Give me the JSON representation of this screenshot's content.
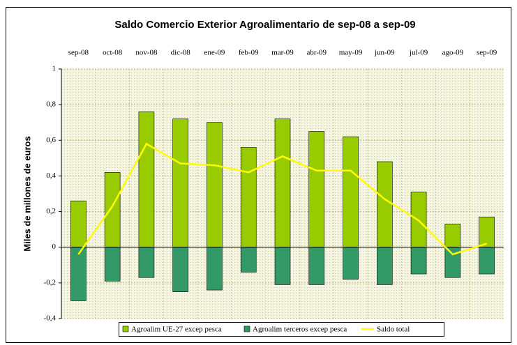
{
  "chart_data": {
    "type": "bar",
    "title": "Saldo Comercio Exterior Agroalimentario de sep-08 a sep-09",
    "ylabel": "Miles de millones de euros",
    "categories": [
      "sep-08",
      "oct-08",
      "nov-08",
      "dic-08",
      "ene-09",
      "feb-09",
      "mar-09",
      "abr-09",
      "may-09",
      "jun-09",
      "jul-09",
      "ago-09",
      "sep-09"
    ],
    "series": [
      {
        "name": "Agroalim UE-27 excep pesca",
        "type": "bar",
        "color": "#99cc00",
        "values": [
          0.26,
          0.42,
          0.76,
          0.72,
          0.7,
          0.56,
          0.72,
          0.65,
          0.62,
          0.48,
          0.31,
          0.13,
          0.17
        ]
      },
      {
        "name": "Agroalim terceros excep pesca",
        "type": "bar",
        "color": "#339966",
        "values": [
          -0.3,
          -0.19,
          -0.17,
          -0.25,
          -0.24,
          -0.14,
          -0.21,
          -0.21,
          -0.18,
          -0.21,
          -0.15,
          -0.17,
          -0.15
        ]
      },
      {
        "name": "Saldo total",
        "type": "line",
        "color": "#ffff00",
        "values": [
          -0.04,
          0.23,
          0.58,
          0.47,
          0.46,
          0.42,
          0.51,
          0.43,
          0.43,
          0.27,
          0.15,
          -0.04,
          0.02
        ]
      }
    ],
    "ylim": [
      -0.4,
      1
    ],
    "yticks": [
      {
        "value": -0.4,
        "label": "-0,4"
      },
      {
        "value": -0.2,
        "label": "-0,2"
      },
      0,
      {
        "value": 0.2,
        "label": "0,2"
      },
      {
        "value": 0.4,
        "label": "0,4"
      },
      {
        "value": 0.6,
        "label": "0,6"
      },
      {
        "value": 0.8,
        "label": "0,8"
      },
      1
    ],
    "grid": true,
    "legend": "bottom"
  }
}
